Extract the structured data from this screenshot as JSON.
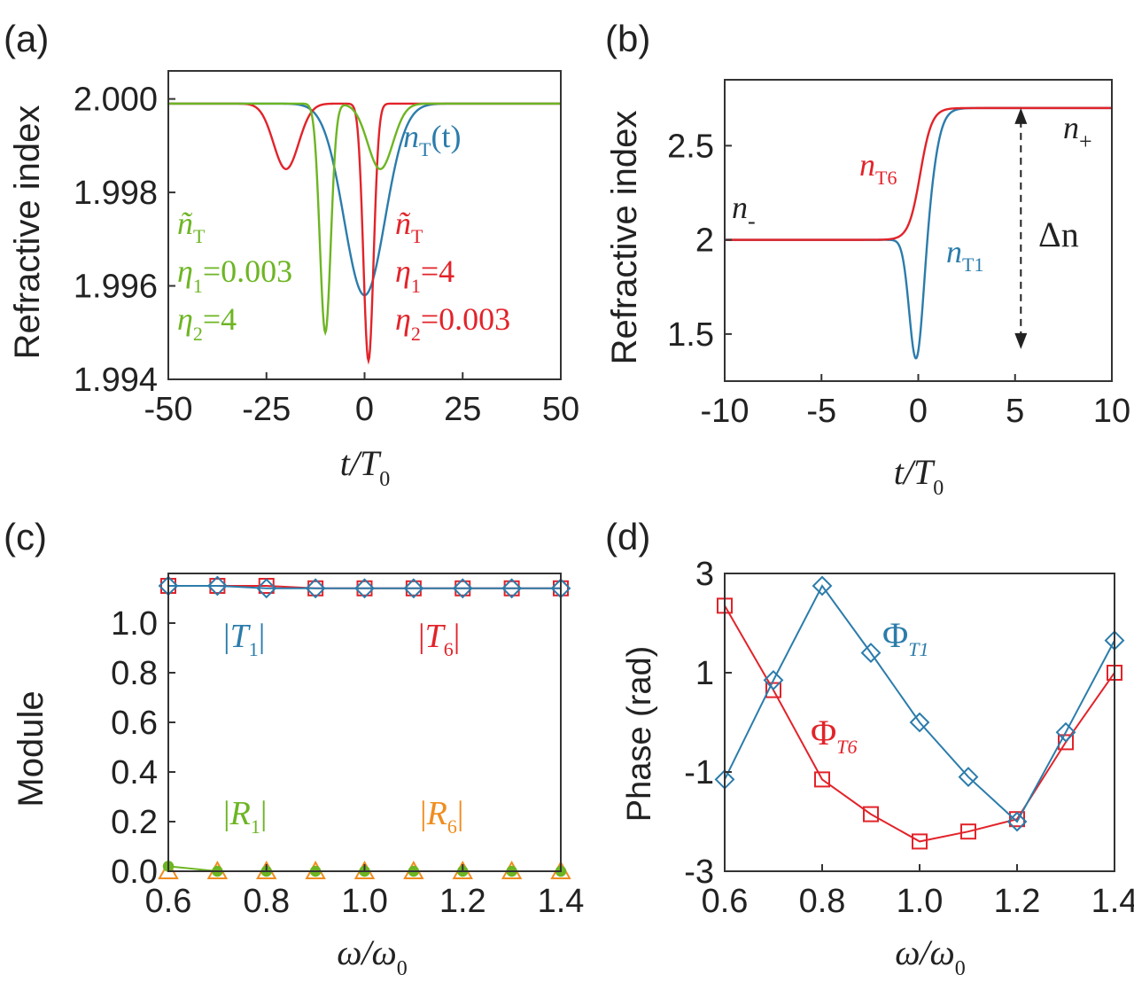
{
  "colors": {
    "blue": "#2b7cab",
    "red": "#e2232a",
    "green": "#6db523",
    "orange": "#f08c1e",
    "frame": "#333333"
  },
  "chart_data": [
    {
      "id": "a",
      "type": "line",
      "panel_label": "(a)",
      "ylabel": "Refractive index",
      "xlabel_main": "t/T",
      "xlabel_sub": "0",
      "xlim": [
        -50,
        50
      ],
      "ylim": [
        1.994,
        2.0006
      ],
      "xticks": [
        -50,
        -25,
        0,
        25,
        50
      ],
      "xtick_labels": [
        "-50",
        "-25",
        "0",
        "25",
        "50"
      ],
      "yticks": [
        1.994,
        1.996,
        1.998,
        2.0
      ],
      "ytick_labels": [
        "1.994",
        "1.996",
        "1.998",
        "2.000"
      ],
      "series": [
        {
          "name": "nT(t)",
          "color": "blue",
          "base": 1.9999,
          "dips": [
            {
              "center": 0,
              "depth": 0.0041,
              "width": 5.2
            }
          ]
        },
        {
          "name": "ñT (η1=4, η2=0.003)",
          "color": "red",
          "base": 1.9999,
          "dips": [
            {
              "center": -20,
              "depth": 0.0014,
              "width": 3.2
            },
            {
              "center": 1,
              "depth": 0.0055,
              "width": 1.3
            }
          ]
        },
        {
          "name": "ñT (η1=0.003, η2=4)",
          "color": "green",
          "base": 1.9999,
          "dips": [
            {
              "center": -10,
              "depth": 0.0049,
              "width": 1.4
            },
            {
              "center": 4,
              "depth": 0.0014,
              "width": 3.2
            }
          ]
        }
      ],
      "annotations": {
        "nT": {
          "main": "n",
          "sub": "T",
          "tail": "(t)"
        },
        "green": {
          "nt": "ñ",
          "nt_sub": "T",
          "eta1": "η",
          "eta1_sub": "1",
          "eta1_val": "=0.003",
          "eta2": "η",
          "eta2_sub": "2",
          "eta2_val": "=4"
        },
        "red": {
          "nt": "ñ",
          "nt_sub": "T",
          "eta1": "η",
          "eta1_sub": "1",
          "eta1_val": "=4",
          "eta2": "η",
          "eta2_sub": "2",
          "eta2_val": "=0.003"
        }
      }
    },
    {
      "id": "b",
      "type": "line",
      "panel_label": "(b)",
      "ylabel": "Refractive index",
      "xlabel_main": "t/T",
      "xlabel_sub": "0",
      "xlim": [
        -10,
        10
      ],
      "ylim": [
        1.25,
        2.85
      ],
      "xticks": [
        -10,
        -5,
        0,
        5,
        10
      ],
      "xtick_labels": [
        "-10",
        "-5",
        "0",
        "5",
        "10"
      ],
      "yticks": [
        1.5,
        2,
        2.5
      ],
      "ytick_labels": [
        "1.5",
        "2",
        "2.5"
      ],
      "series": [
        {
          "name": "nT1",
          "color": "blue",
          "n_minus": 2.0,
          "n_plus": 2.7,
          "step_center": 0.75,
          "step_width": 0.28,
          "dip_center": -0.1,
          "dip_depth": 0.66,
          "dip_width": 0.36
        },
        {
          "name": "nT6",
          "color": "red",
          "n_minus": 2.0,
          "n_plus": 2.7,
          "step_center": 0.1,
          "step_width": 0.3
        }
      ],
      "annotations": {
        "n_minus": "n",
        "n_minus_sub": "-",
        "n_plus": "n",
        "n_plus_sub": "+",
        "nT6": "n",
        "nT6_sub": "T6",
        "nT1": "n",
        "nT1_sub": "T1",
        "delta": "Δn",
        "arrow_x": 5.3,
        "arrow_from": 1.42,
        "arrow_to": 2.7
      }
    },
    {
      "id": "c",
      "type": "line",
      "panel_label": "(c)",
      "ylabel": "Module",
      "xlabel_main": "ω/ω",
      "xlabel_sub": "0",
      "xlim": [
        0.6,
        1.4
      ],
      "ylim": [
        0.0,
        1.2
      ],
      "xticks": [
        0.6,
        0.8,
        1.0,
        1.2,
        1.4
      ],
      "xtick_labels": [
        "0.6",
        "0.8",
        "1.0",
        "1.2",
        "1.4"
      ],
      "yticks": [
        0.0,
        0.2,
        0.4,
        0.6,
        0.8,
        1.0
      ],
      "ytick_labels": [
        "0.0",
        "0.2",
        "0.4",
        "0.6",
        "0.8",
        "1.0"
      ],
      "x": [
        0.6,
        0.7,
        0.8,
        0.9,
        1.0,
        1.1,
        1.2,
        1.3,
        1.4
      ],
      "series": [
        {
          "name": "|T1|",
          "color": "blue",
          "marker": "diamond",
          "values": [
            1.15,
            1.15,
            1.14,
            1.14,
            1.14,
            1.14,
            1.14,
            1.14,
            1.14
          ]
        },
        {
          "name": "|T6|",
          "color": "red",
          "marker": "square",
          "values": [
            1.15,
            1.15,
            1.15,
            1.14,
            1.14,
            1.14,
            1.14,
            1.14,
            1.14
          ]
        },
        {
          "name": "|R1|",
          "color": "green",
          "marker": "circle",
          "values": [
            0.02,
            0.0,
            0.0,
            0.0,
            0.0,
            0.0,
            0.0,
            0.0,
            0.0
          ]
        },
        {
          "name": "|R6|",
          "color": "orange",
          "marker": "triangle",
          "values": [
            0.0,
            0.0,
            0.0,
            0.0,
            0.0,
            0.0,
            0.0,
            0.0,
            0.0
          ]
        }
      ],
      "annotations": {
        "T1": {
          "main": "T",
          "sub": "1"
        },
        "T6": {
          "main": "T",
          "sub": "6"
        },
        "R1": {
          "main": "R",
          "sub": "1"
        },
        "R6": {
          "main": "R",
          "sub": "6"
        },
        "bar": "|"
      }
    },
    {
      "id": "d",
      "type": "line",
      "panel_label": "(d)",
      "ylabel": "Phase (rad)",
      "xlabel_main": "ω/ω",
      "xlabel_sub": "0",
      "xlim": [
        0.6,
        1.4
      ],
      "ylim": [
        -3,
        3
      ],
      "xticks": [
        0.6,
        0.8,
        1.0,
        1.2,
        1.4
      ],
      "xtick_labels": [
        "0.6",
        "0.8",
        "1.0",
        "1.2",
        "1.4"
      ],
      "yticks": [
        -3,
        -1,
        1,
        3
      ],
      "ytick_labels": [
        "-3",
        "-1",
        "1",
        "3"
      ],
      "x": [
        0.6,
        0.7,
        0.8,
        0.9,
        1.0,
        1.1,
        1.2,
        1.3,
        1.4
      ],
      "series": [
        {
          "name": "ΦT1",
          "color": "blue",
          "marker": "diamond",
          "values": [
            -1.15,
            0.85,
            2.75,
            1.4,
            0.0,
            -1.1,
            -2.0,
            -0.2,
            1.65
          ]
        },
        {
          "name": "ΦT6",
          "color": "red",
          "marker": "square",
          "values": [
            2.35,
            0.65,
            -1.15,
            -1.85,
            -2.4,
            -2.2,
            -1.95,
            -0.4,
            1.0
          ]
        }
      ],
      "annotations": {
        "PhiT1": {
          "main": "Φ",
          "sub": "T1"
        },
        "PhiT6": {
          "main": "Φ",
          "sub": "T6"
        }
      }
    }
  ]
}
